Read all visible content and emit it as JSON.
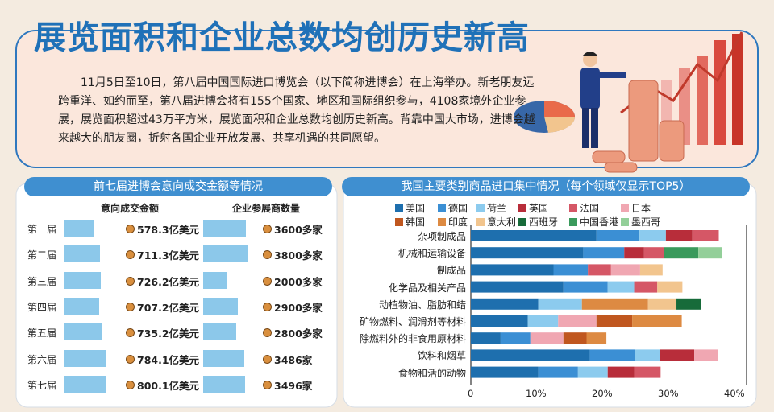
{
  "headline": "展览面积和企业总数均创历史新高",
  "intro": "11月5日至10日，第八届中国国际进口博览会（以下简称进博会）在上海举办。新老朋友远跨重洋、如约而至，第八届进博会将有155个国家、地区和国际组织参与，4108家境外企业参展，展览面积超过43万平方米，展览面积和企业总数均创历史新高。背靠中国大市场，进博会越来越大的朋友圈，折射各国企业开放发展、共享机遇的共同愿望。",
  "left_panel": {
    "header": "前七届进博会意向成交金额等情况",
    "col1": "意向成交金额",
    "col2": "企业参展商数量"
  },
  "right_panel": {
    "header": "我国主要类别商品进口集中情况（每个领域仅显示TOP5）"
  },
  "colors": {
    "title_blue": "#1f71b8",
    "header_blue": "#3f8fd0",
    "bar_light": "#8cc8ea",
    "dot_orange": "#d98f3e"
  },
  "chart_data": [
    {
      "type": "bar",
      "orientation": "horizontal",
      "categories": [
        "第一届",
        "第二届",
        "第三届",
        "第四届",
        "第五届",
        "第六届",
        "第七届"
      ],
      "series": [
        {
          "values": [
            578.3,
            711.3,
            726.2,
            707.2,
            735.2,
            784.1,
            800.1
          ],
          "unit": "亿美元",
          "labels": [
            "578.3亿美元",
            "711.3亿美元",
            "726.2亿美元",
            "707.2亿美元",
            "735.2亿美元",
            "784.1亿美元",
            "800.1亿美元"
          ]
        },
        {
          "values": [
            3600,
            3800,
            2000,
            2900,
            2800,
            3486,
            3496
          ],
          "unit": "家",
          "labels": [
            "3600多家",
            "3800多家",
            "2000多家",
            "2900多家",
            "2800多家",
            "3486家",
            "3496家"
          ]
        }
      ]
    },
    {
      "type": "bar",
      "orientation": "horizontal",
      "stacked": true,
      "xlim": [
        0,
        40
      ],
      "ticks": [
        "0",
        "10%",
        "20%",
        "30%",
        "40%"
      ],
      "categories": [
        "杂项制成品",
        "机械和运输设备",
        "制成品",
        "化学品及相关产品",
        "动植物油、脂肪和蜡",
        "矿物燃料、润滑剂等材料",
        "除燃料外的非食用原材料",
        "饮料和烟草",
        "食物和活的动物"
      ],
      "legend": [
        {
          "name": "美国",
          "color": "#1e6fae"
        },
        {
          "name": "德国",
          "color": "#3b8fd4"
        },
        {
          "name": "荷兰",
          "color": "#8ccbee"
        },
        {
          "name": "英国",
          "color": "#b82d3a"
        },
        {
          "name": "法国",
          "color": "#d55766"
        },
        {
          "name": "日本",
          "color": "#f0a7b2"
        },
        {
          "name": "韩国",
          "color": "#c0571f"
        },
        {
          "name": "印度",
          "color": "#dd8a42"
        },
        {
          "name": "意大利",
          "color": "#f2c58e"
        },
        {
          "name": "西班牙",
          "color": "#176b3a"
        },
        {
          "name": "中国香港",
          "color": "#3a9a5c"
        },
        {
          "name": "墨西哥",
          "color": "#93cf99"
        }
      ],
      "stacks": [
        [
          [
            "美国",
            19
          ],
          [
            "德国",
            6.5
          ],
          [
            "荷兰",
            4
          ],
          [
            "英国",
            4
          ],
          [
            "法国",
            4
          ]
        ],
        [
          [
            "美国",
            17
          ],
          [
            "德国",
            6.2
          ],
          [
            "英国",
            3
          ],
          [
            "法国",
            3
          ],
          [
            "中国香港",
            5.2
          ],
          [
            "墨西哥",
            3.6
          ]
        ],
        [
          [
            "美国",
            12.5
          ],
          [
            "德国",
            5.2
          ],
          [
            "法国",
            3.5
          ],
          [
            "日本",
            4.4
          ],
          [
            "意大利",
            3.4
          ]
        ],
        [
          [
            "美国",
            14
          ],
          [
            "德国",
            6.7
          ],
          [
            "荷兰",
            4
          ],
          [
            "法国",
            3.5
          ],
          [
            "意大利",
            3.8
          ]
        ],
        [
          [
            "美国",
            10.2
          ],
          [
            "荷兰",
            6.6
          ],
          [
            "印度",
            10
          ],
          [
            "意大利",
            4.3
          ],
          [
            "西班牙",
            3.7
          ]
        ],
        [
          [
            "美国",
            8.6
          ],
          [
            "荷兰",
            4.6
          ],
          [
            "日本",
            5.8
          ],
          [
            "韩国",
            5.4
          ],
          [
            "印度",
            7.5
          ]
        ],
        [
          [
            "美国",
            4.5
          ],
          [
            "德国",
            4.5
          ],
          [
            "日本",
            5
          ],
          [
            "韩国",
            3.5
          ],
          [
            "印度",
            3
          ]
        ],
        [
          [
            "美国",
            18
          ],
          [
            "德国",
            6.8
          ],
          [
            "荷兰",
            3.8
          ],
          [
            "英国",
            5.2
          ],
          [
            "日本",
            3.6
          ]
        ],
        [
          [
            "美国",
            10.2
          ],
          [
            "德国",
            6
          ],
          [
            "荷兰",
            4.5
          ],
          [
            "英国",
            4
          ],
          [
            "法国",
            4
          ]
        ]
      ]
    }
  ]
}
